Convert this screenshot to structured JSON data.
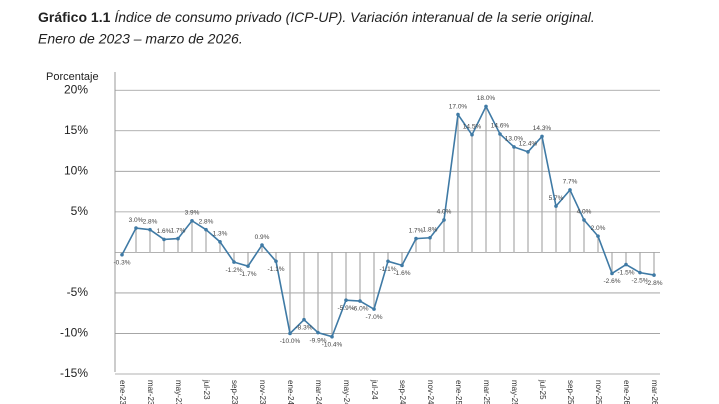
{
  "chart_data": {
    "type": "line",
    "title_prefix": "Gráfico 1.1",
    "title": "Índice de consumo privado (ICP-UP). Variación interanual de la serie original.",
    "subtitle": "Enero de 2023 – marzo de 2026.",
    "y_label": "Porcentaje",
    "categories": [
      "ene-23",
      null,
      "mar-23",
      null,
      "may-23",
      null,
      "jul-23",
      null,
      "sep-23",
      null,
      "nov-23",
      null,
      "ene-24",
      null,
      "mar-24",
      null,
      "may-24",
      null,
      "jul-24",
      null,
      "sep-24",
      null,
      "nov-24",
      null,
      "ene-25",
      null,
      "mar-25",
      null,
      "may-25",
      null,
      "jul-25",
      null,
      "sep-25",
      null,
      "nov-25",
      null,
      "ene-26",
      null,
      "mar-26"
    ],
    "series": [
      {
        "name": "ICP-UP",
        "color": "#3f7aa5",
        "values": [
          -0.3,
          3.0,
          2.8,
          1.6,
          1.7,
          3.9,
          2.8,
          1.3,
          -1.2,
          -1.7,
          0.9,
          -1.1,
          -10.0,
          -8.3,
          -9.9,
          -10.4,
          -5.9,
          -6.0,
          -7.0,
          -1.1,
          -1.6,
          1.7,
          1.8,
          4.0,
          17.0,
          14.5,
          18.0,
          14.6,
          13.0,
          12.4,
          14.3,
          5.7,
          7.7,
          4.0,
          2.0,
          -2.6,
          -1.5,
          -2.5,
          -2.8
        ],
        "value_labels": [
          "-0.3%",
          "3.0%",
          "2.8%",
          "1.6%",
          "1.7%",
          "3.9%",
          "2.8%",
          "1.3%",
          "-1.2%",
          "-1.7%",
          "0.9%",
          "-1.1%",
          "-10.0%",
          "-8.3%",
          "-9.9%",
          "-10.4%",
          "-5.9%",
          "-6.0%",
          "-7.0%",
          "-1.1%",
          "-1.6%",
          "1.7%",
          "1.8%",
          "4.0%",
          "17.0%",
          "14.5%",
          "18.0%",
          "14.6%",
          "13.0%",
          "12.4%",
          "14.3%",
          "5.7%",
          "7.7%",
          "4.0%",
          "2.0%",
          "-2.6%",
          "-1.5%",
          "-2.5%",
          "-2.8%"
        ]
      }
    ],
    "ylim": [
      -15,
      22
    ],
    "yticks": [
      {
        "value": 20,
        "label": "20%"
      },
      {
        "value": 15,
        "label": "15%"
      },
      {
        "value": 10,
        "label": "10%"
      },
      {
        "value": 5,
        "label": "5%"
      },
      {
        "value": -5,
        "label": "-5%"
      },
      {
        "value": -10,
        "label": "-10%"
      },
      {
        "value": -15,
        "label": "-15%"
      }
    ],
    "grid": true
  }
}
